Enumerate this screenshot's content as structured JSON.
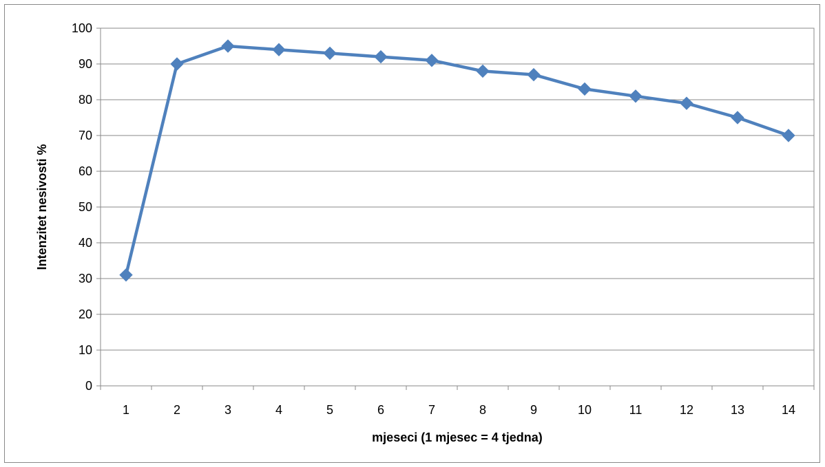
{
  "chart_data": {
    "type": "line",
    "title": "",
    "xlabel": "mjeseci (1 mjesec = 4 tjedna)",
    "ylabel": "Intenzitet nesivosti %",
    "x": [
      1,
      2,
      3,
      4,
      5,
      6,
      7,
      8,
      9,
      10,
      11,
      12,
      13,
      14
    ],
    "series": [
      {
        "values": [
          31,
          90,
          95,
          94,
          93,
          92,
          91,
          88,
          87,
          83,
          81,
          79,
          75,
          70
        ],
        "color": "#4f81bd",
        "marker": "diamond"
      }
    ],
    "ylim": [
      0,
      100
    ],
    "yticks": [
      0,
      10,
      20,
      30,
      40,
      50,
      60,
      70,
      80,
      90,
      100
    ],
    "grid": true,
    "legend": "none"
  }
}
